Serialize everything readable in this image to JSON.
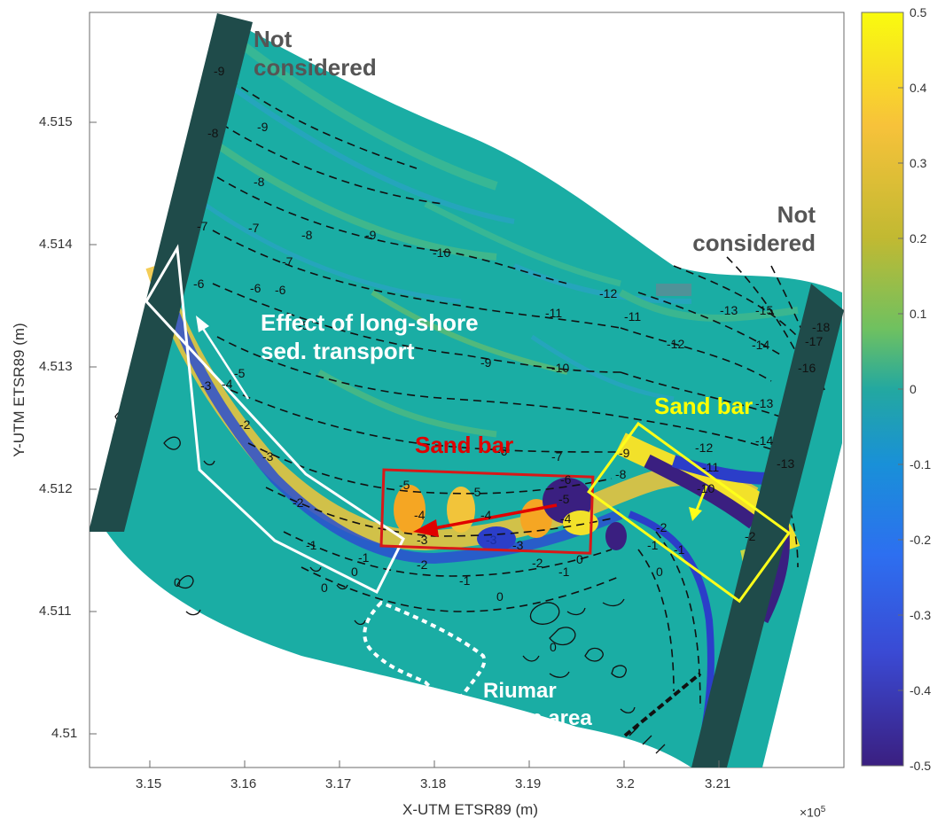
{
  "map": {
    "x_axis_label": "X-UTM ETSR89 (m)",
    "y_axis_label": "Y-UTM ETSR89 (m)",
    "x_exponent_base": "×10",
    "x_exponent_power": "5",
    "x_ticks": [
      "3.15",
      "3.16",
      "3.17",
      "3.18",
      "3.19",
      "3.2",
      "3.21"
    ],
    "y_ticks": [
      "4.515",
      "4.514",
      "4.513",
      "4.512",
      "4.511",
      "4.51"
    ],
    "colorbar_ticks": [
      "0.5",
      "0.4",
      "0.3",
      "0.2",
      "0.1",
      "0",
      "-0.1",
      "-0.2",
      "-0.3",
      "-0.4",
      "-0.5"
    ]
  },
  "annotations": {
    "not_considered_left_1": "Not",
    "not_considered_left_2": "considered",
    "not_considered_right_1": "Not",
    "not_considered_right_2": "considered",
    "longshore_1": "Effect of long-shore",
    "longshore_2": "sed. transport",
    "sand_bar_red": "Sand bar",
    "sand_bar_yellow": "Sand bar",
    "riumar_1": "Riumar",
    "riumar_2": "urban area"
  },
  "contour_labels": [
    {
      "text": "-9"
    },
    {
      "text": "-8"
    },
    {
      "text": "-7"
    },
    {
      "text": "-6"
    },
    {
      "text": "-5"
    },
    {
      "text": "-4"
    },
    {
      "text": "-3"
    },
    {
      "text": "-2"
    },
    {
      "text": "-1"
    },
    {
      "text": "0"
    },
    {
      "text": "-9"
    },
    {
      "text": "-8"
    },
    {
      "text": "-7"
    },
    {
      "text": "-6"
    },
    {
      "text": "-5"
    },
    {
      "text": "-10"
    },
    {
      "text": "-9"
    },
    {
      "text": "-8"
    },
    {
      "text": "-7"
    },
    {
      "text": "-6"
    },
    {
      "text": "-11"
    },
    {
      "text": "-10"
    },
    {
      "text": "-9"
    },
    {
      "text": "-12"
    },
    {
      "text": "-11"
    },
    {
      "text": "-13"
    },
    {
      "text": "-12"
    },
    {
      "text": "-15"
    },
    {
      "text": "-14"
    },
    {
      "text": "-13"
    },
    {
      "text": "-16"
    },
    {
      "text": "-17"
    },
    {
      "text": "-18"
    },
    {
      "text": "-14"
    },
    {
      "text": "-13"
    },
    {
      "text": "-12"
    },
    {
      "text": "-11"
    },
    {
      "text": "-10"
    },
    {
      "text": "-9"
    },
    {
      "text": "-8"
    },
    {
      "text": "-7"
    },
    {
      "text": "-6"
    },
    {
      "text": "-5"
    },
    {
      "text": "-4"
    },
    {
      "text": "-3"
    },
    {
      "text": "-2"
    },
    {
      "text": "-1"
    },
    {
      "text": "0"
    },
    {
      "text": "-5"
    },
    {
      "text": "-4"
    },
    {
      "text": "-3"
    },
    {
      "text": "-6"
    },
    {
      "text": "-5"
    },
    {
      "text": "-4"
    },
    {
      "text": "-3"
    },
    {
      "text": "-2"
    },
    {
      "text": "-1"
    },
    {
      "text": "0"
    },
    {
      "text": "-2"
    },
    {
      "text": "-1"
    },
    {
      "text": "0"
    },
    {
      "text": "0"
    },
    {
      "text": "0"
    },
    {
      "text": "-1"
    },
    {
      "text": "-3"
    },
    {
      "text": "-2"
    },
    {
      "text": "-1"
    },
    {
      "text": "0"
    },
    {
      "text": "-2"
    }
  ],
  "colors": {
    "base": "#1aada4",
    "high": "#f2e12a",
    "mid_high": "#f5a623",
    "low": "#2b3ec9",
    "lowest": "#3a1f80",
    "mask": "#1f4b4a",
    "red_box": "#d81818",
    "yellow_box": "#ffff1a",
    "white_box": "#ffffff"
  }
}
